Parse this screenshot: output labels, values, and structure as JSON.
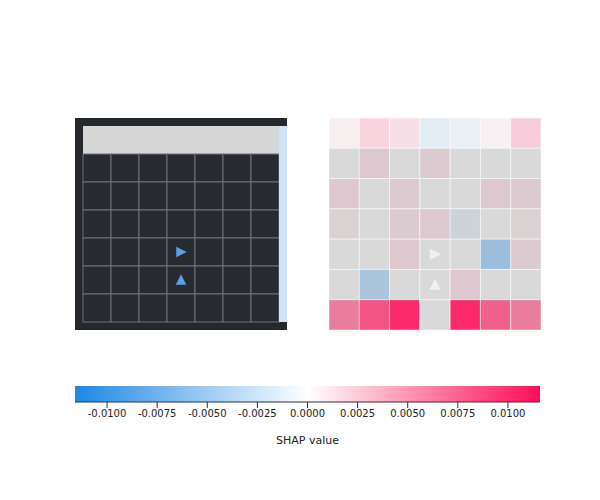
{
  "chart_data": {
    "type": "heatmap",
    "cells": [
      [
        0.0005,
        0.0018,
        0.0012,
        -0.001,
        -0.0008,
        0.0003,
        0.0022
      ],
      [
        0,
        0.001,
        0,
        0.0008,
        0,
        0,
        0
      ],
      [
        0.001,
        0,
        0.0008,
        0,
        0,
        0.001,
        0.0008
      ],
      [
        0.0005,
        0,
        0.0008,
        0.001,
        -0.0008,
        0,
        0.0005
      ],
      [
        0,
        0,
        0.001,
        0,
        0,
        -0.004,
        0.0008
      ],
      [
        0,
        -0.003,
        0,
        0,
        0.001,
        0,
        0
      ],
      [
        0.0055,
        0.008,
        0.0105,
        0,
        0.0105,
        0.0072,
        0.0055
      ]
    ],
    "colorbar": {
      "label": "SHAP value",
      "range": [
        -0.0116,
        0.0116
      ],
      "ticks": [
        {
          "value": -0.01,
          "label": "-0.0100"
        },
        {
          "value": -0.0075,
          "label": "-0.0075"
        },
        {
          "value": -0.005,
          "label": "-0.0050"
        },
        {
          "value": -0.0025,
          "label": "-0.0025"
        },
        {
          "value": 0,
          "label": "0.0000"
        },
        {
          "value": 0.0025,
          "label": "0.0025"
        },
        {
          "value": 0.005,
          "label": "0.0050"
        },
        {
          "value": 0.0075,
          "label": "0.0075"
        },
        {
          "value": 0.01,
          "label": "0.0100"
        }
      ]
    },
    "tick_labels": false
  },
  "observation": {
    "rows": 7,
    "cols": 7,
    "wall_rows": [
      0
    ],
    "agents": [
      {
        "row": 4,
        "col": 3,
        "direction": "right"
      },
      {
        "row": 5,
        "col": 3,
        "direction": "up"
      }
    ]
  }
}
